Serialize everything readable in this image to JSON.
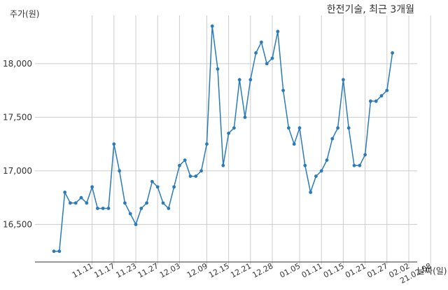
{
  "chart_data": {
    "type": "line",
    "title": "한전기술, 최근 3개월",
    "xlabel": "날짜(일)",
    "ylabel": "주가(원)",
    "ylim": [
      16150,
      18450
    ],
    "grid": true,
    "legend": "none",
    "color": "#2b7bb9",
    "y_ticks": [
      16500,
      17000,
      17500,
      18000
    ],
    "y_tick_labels": [
      "16,500",
      "17,000",
      "17,500",
      "18,000"
    ],
    "x_ticks": [
      {
        "index": 7,
        "label": "11.11"
      },
      {
        "index": 11,
        "label": "11.17"
      },
      {
        "index": 15,
        "label": "11.23"
      },
      {
        "index": 19,
        "label": "11.27"
      },
      {
        "index": 23,
        "label": "12.03"
      },
      {
        "index": 28,
        "label": "12.09"
      },
      {
        "index": 32,
        "label": "12.15"
      },
      {
        "index": 36,
        "label": "12.21"
      },
      {
        "index": 40,
        "label": "12.28"
      },
      {
        "index": 45,
        "label": "01.05"
      },
      {
        "index": 49,
        "label": "01.11"
      },
      {
        "index": 53,
        "label": "01.15"
      },
      {
        "index": 57,
        "label": "01.21"
      },
      {
        "index": 61,
        "label": "01.27"
      },
      {
        "index": 65,
        "label": "02.02"
      },
      {
        "index": 69,
        "label": "21.02.08"
      }
    ],
    "values": [
      16250,
      16250,
      16800,
      16700,
      16700,
      16750,
      16700,
      16850,
      16650,
      16650,
      16650,
      17250,
      17000,
      16700,
      16600,
      16500,
      16650,
      16700,
      16900,
      16850,
      16700,
      16650,
      16850,
      17050,
      17100,
      16950,
      16950,
      17000,
      17250,
      18350,
      17950,
      17050,
      17350,
      17400,
      17850,
      17500,
      17850,
      18100,
      18200,
      18000,
      18050,
      18300,
      17750,
      17400,
      17250,
      17400,
      17050,
      16800,
      16950,
      17000,
      17100,
      17300,
      17400,
      17850,
      17400,
      17050,
      17050,
      17150,
      17650,
      17650,
      17700,
      17750,
      18100
    ],
    "index_offset": 0
  }
}
